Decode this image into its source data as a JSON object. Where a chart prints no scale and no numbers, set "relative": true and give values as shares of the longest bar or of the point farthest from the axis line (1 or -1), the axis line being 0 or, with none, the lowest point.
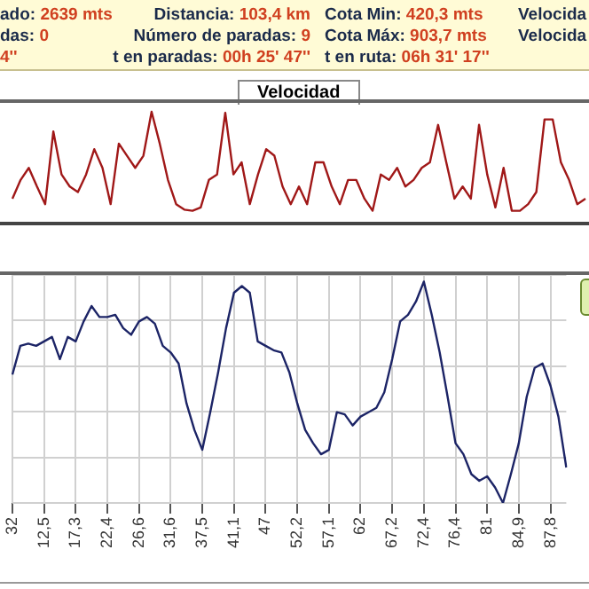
{
  "chart_data": [
    {
      "type": "other",
      "annotations": [
        "ado: 2639 mts",
        "Distancia: 103,4 km",
        "Cota Min: 420,3 mts",
        "Velocida",
        "das: 0",
        "Número de paradas: 9",
        "Cota Máx: 903,7 mts",
        "Velocida",
        "4''",
        "t en paradas: 00h 25' 47''",
        "t en ruta: 06h 31' 17''"
      ]
    },
    {
      "type": "line",
      "title": "Velocidad",
      "relative": true,
      "tick_labels": false,
      "grid": false,
      "legend": false,
      "marker": "none",
      "categories": [
        null,
        null,
        null,
        null,
        null,
        null,
        null,
        null,
        null,
        null,
        null,
        null,
        null,
        null,
        null,
        null,
        null,
        null,
        null,
        null,
        null,
        null,
        null,
        null,
        null,
        null,
        null,
        null,
        null,
        null,
        null,
        null,
        null,
        null,
        null,
        null,
        null,
        null,
        null,
        null,
        null,
        null,
        null,
        null,
        null,
        null,
        null,
        null,
        null,
        null,
        null,
        null,
        null,
        null,
        null,
        null,
        null,
        null,
        null,
        null,
        null,
        null,
        null,
        null,
        null,
        null,
        null,
        null,
        null,
        null,
        null
      ],
      "series": [
        {
          "color": "#a01818",
          "values": [
            0.21,
            0.38,
            0.49,
            0.32,
            0.16,
            0.82,
            0.43,
            0.32,
            0.27,
            0.43,
            0.66,
            0.49,
            0.16,
            0.71,
            0.6,
            0.49,
            0.6,
            1,
            0.71,
            0.38,
            0.16,
            0.11,
            0.1,
            0.13,
            0.38,
            0.43,
            0.99,
            0.43,
            0.54,
            0.16,
            0.43,
            0.66,
            0.6,
            0.32,
            0.16,
            0.32,
            0.16,
            0.54,
            0.54,
            0.32,
            0.16,
            0.38,
            0.38,
            0.21,
            0.1,
            0.43,
            0.38,
            0.49,
            0.32,
            0.38,
            0.49,
            0.54,
            0.88,
            0.54,
            0.21,
            0.32,
            0.21,
            0.88,
            0.43,
            0.13,
            0.49,
            0.1,
            0.1,
            0.16,
            0.27,
            0.93,
            0.93,
            0.54,
            0.38,
            0.16,
            0.21
          ]
        }
      ]
    },
    {
      "type": "line",
      "relative": true,
      "tick_labels": "x",
      "grid": true,
      "legend": false,
      "marker": "none",
      "categories": [
        "32",
        null,
        null,
        null,
        "12,5",
        null,
        null,
        null,
        "17,3",
        null,
        null,
        null,
        "22,4",
        null,
        null,
        null,
        "26,6",
        null,
        null,
        null,
        "31,6",
        null,
        null,
        null,
        "37,5",
        null,
        null,
        null,
        "41,1",
        null,
        null,
        null,
        "47",
        null,
        null,
        null,
        "52,2",
        null,
        null,
        null,
        "57,1",
        null,
        null,
        null,
        "62",
        null,
        null,
        null,
        "67,2",
        null,
        null,
        null,
        "72,4",
        null,
        null,
        null,
        "76,4",
        null,
        null,
        null,
        "81",
        null,
        null,
        null,
        "84,9",
        null,
        null,
        null,
        "87,8",
        null,
        null
      ],
      "series": [
        {
          "color": "#1c2466",
          "values": [
            0.58,
            0.71,
            0.72,
            0.71,
            0.73,
            0.75,
            0.65,
            0.75,
            0.73,
            0.82,
            0.89,
            0.84,
            0.84,
            0.85,
            0.79,
            0.76,
            0.82,
            0.84,
            0.81,
            0.71,
            0.68,
            0.63,
            0.45,
            0.33,
            0.24,
            0.41,
            0.59,
            0.79,
            0.95,
            0.98,
            0.95,
            0.73,
            0.71,
            0.69,
            0.68,
            0.59,
            0.45,
            0.33,
            0.27,
            0.22,
            0.24,
            0.41,
            0.4,
            0.35,
            0.39,
            0.41,
            0.43,
            0.5,
            0.65,
            0.82,
            0.85,
            0.91,
            1,
            0.85,
            0.68,
            0.48,
            0.27,
            0.22,
            0.13,
            0.1,
            0.12,
            0.07,
            0,
            0.13,
            0.27,
            0.48,
            0.61,
            0.63,
            0.53,
            0.39,
            0.16
          ]
        }
      ]
    }
  ]
}
